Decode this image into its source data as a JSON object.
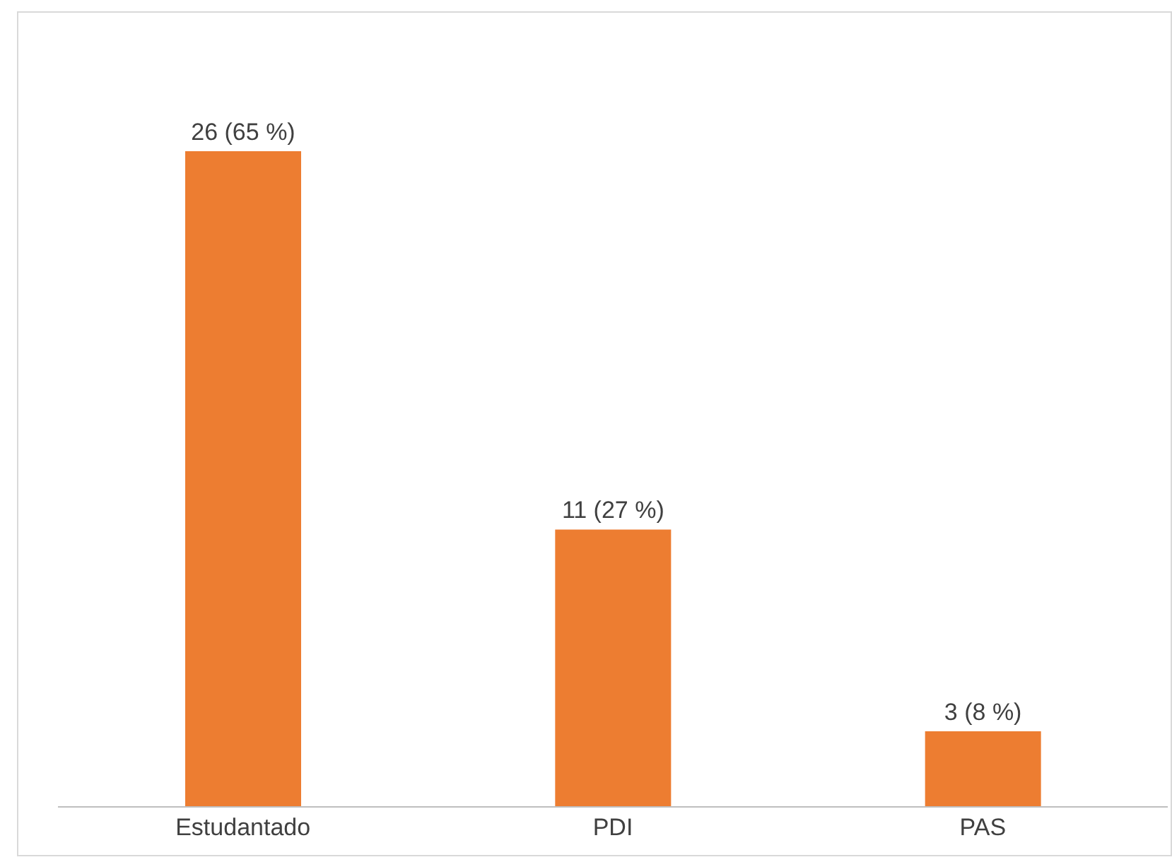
{
  "chart_data": {
    "type": "bar",
    "categories": [
      "Estudantado",
      "PDI",
      "PAS"
    ],
    "values": [
      26,
      11,
      3
    ],
    "value_labels": [
      "26 (65 %)",
      "11 (27 %)",
      "3 (8 %)"
    ],
    "color": "#ed7d31",
    "grid": false,
    "legend": false
  }
}
